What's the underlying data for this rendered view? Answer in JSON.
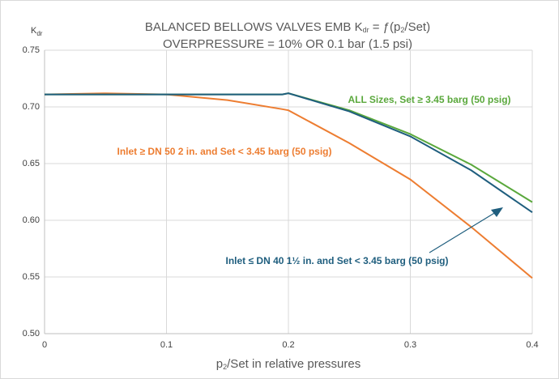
{
  "chart_data": {
    "type": "line",
    "title": [
      "BALANCED BELLOWS VALVES EMB K",
      "dr",
      " = ƒ(p",
      "2",
      "/Set)"
    ],
    "subtitle": "OVERPRESSURE = 10% OR 0.1 bar (1.5 psi)",
    "y_label": [
      "K",
      "dr"
    ],
    "x_label": [
      "p",
      "2",
      "/Set in relative pressures"
    ],
    "x": [
      0,
      0.05,
      0.1,
      0.15,
      0.195,
      0.2,
      0.25,
      0.3,
      0.35,
      0.4
    ],
    "series": [
      {
        "name": "ALL Sizes, Set ≥ 3.45 barg (50 psig)",
        "color": "#5aa83c",
        "values": [
          0.711,
          0.711,
          0.711,
          0.711,
          0.711,
          0.712,
          0.697,
          0.676,
          0.649,
          0.616
        ]
      },
      {
        "name": "Inlet ≥ DN 50 2 in. and Set < 3.45 barg (50 psig)",
        "color": "#ed7d31",
        "values": [
          0.711,
          0.712,
          0.711,
          0.706,
          0.698,
          0.697,
          0.668,
          0.636,
          0.594,
          0.549
        ]
      },
      {
        "name": "Inlet ≤ DN 40 1½ in. and Set < 3.45 barg (50 psig)",
        "color": "#1f5e7e",
        "values": [
          0.711,
          0.711,
          0.711,
          0.711,
          0.711,
          0.712,
          0.696,
          0.674,
          0.644,
          0.607
        ]
      }
    ],
    "xlim": [
      0,
      0.4
    ],
    "xticks": [
      0,
      0.1,
      0.2,
      0.3,
      0.4
    ],
    "ylim": [
      0.5,
      0.75
    ],
    "yticks": [
      {
        "value": 0.5,
        "label": "0.50"
      },
      {
        "value": 0.55,
        "label": "0.55"
      },
      {
        "value": 0.6,
        "label": "0.60"
      },
      {
        "value": 0.65,
        "label": "0.65"
      },
      {
        "value": 0.7,
        "label": "0.70"
      },
      {
        "value": 0.75,
        "label": "0.75"
      }
    ],
    "grid": true
  }
}
